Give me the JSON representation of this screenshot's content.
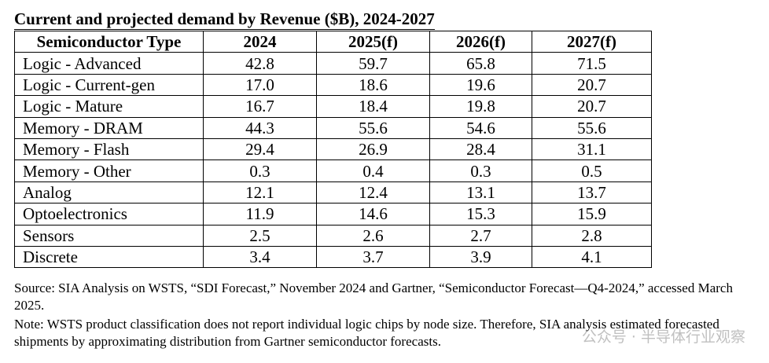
{
  "chart_data": {
    "type": "table",
    "title": "Current and projected demand by Revenue ($B), 2024-2027",
    "columns": [
      "Semiconductor Type",
      "2024",
      "2025(f)",
      "2026(f)",
      "2027(f)"
    ],
    "rows": [
      {
        "category": "Logic - Advanced",
        "values": [
          "42.8",
          "59.7",
          "65.8",
          "71.5"
        ]
      },
      {
        "category": "Logic - Current-gen",
        "values": [
          "17.0",
          "18.6",
          "19.6",
          "20.7"
        ]
      },
      {
        "category": "Logic - Mature",
        "values": [
          "16.7",
          "18.4",
          "19.8",
          "20.7"
        ]
      },
      {
        "category": "Memory - DRAM",
        "values": [
          "44.3",
          "55.6",
          "54.6",
          "55.6"
        ]
      },
      {
        "category": "Memory - Flash",
        "values": [
          "29.4",
          "26.9",
          "28.4",
          "31.1"
        ]
      },
      {
        "category": "Memory - Other",
        "values": [
          "0.3",
          "0.4",
          "0.3",
          "0.5"
        ]
      },
      {
        "category": "Analog",
        "values": [
          "12.1",
          "12.4",
          "13.1",
          "13.7"
        ]
      },
      {
        "category": "Optoelectronics",
        "values": [
          "11.9",
          "14.6",
          "15.3",
          "15.9"
        ]
      },
      {
        "category": "Sensors",
        "values": [
          "2.5",
          "2.6",
          "2.7",
          "2.8"
        ]
      },
      {
        "category": "Discrete",
        "values": [
          "3.4",
          "3.7",
          "3.9",
          "4.1"
        ]
      }
    ],
    "source": "Source: SIA Analysis on WSTS, “SDI Forecast,” November 2024 and Gartner, “Semiconductor Forecast—Q4-2024,” accessed March 2025.",
    "note": "Note: WSTS product classification does not report individual logic chips by node size. Therefore, SIA analysis estimated forecasted shipments by approximating distribution from Gartner semiconductor forecasts."
  },
  "watermark": "公众号 · 半导体行业观察"
}
